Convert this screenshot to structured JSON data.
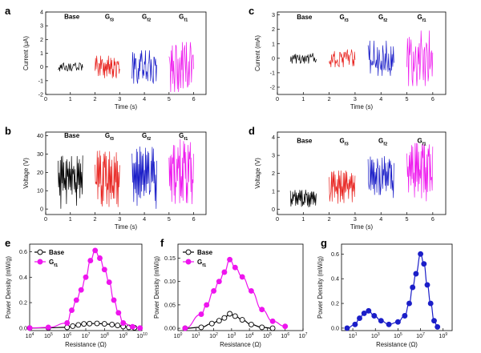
{
  "chart_data": [
    {
      "panel": "a",
      "type": "line",
      "xlabel": "Time (s)",
      "ylabel": "Current (μA)",
      "xlim": [
        0,
        6.5
      ],
      "ylim": [
        -2,
        4
      ],
      "xticks": [
        "0",
        "1",
        "2",
        "3",
        "4",
        "5",
        "6"
      ],
      "yticks": [
        "-2",
        "-1",
        "0",
        "1",
        "2",
        "3",
        "4"
      ],
      "series": [
        {
          "name": "Base",
          "t_range": [
            0.5,
            1.5
          ],
          "amplitude": 0.3,
          "color": "#000000",
          "seed": 11
        },
        {
          "name": "Gf3",
          "t_range": [
            2.0,
            3.0
          ],
          "amplitude": 0.8,
          "color": "#e8231f",
          "seed": 23
        },
        {
          "name": "Gf2",
          "t_range": [
            3.5,
            4.5
          ],
          "amplitude": 1.2,
          "color": "#1b1ec8",
          "seed": 37
        },
        {
          "name": "Gf1",
          "t_range": [
            5.0,
            6.0
          ],
          "amplitude": 1.8,
          "color": "#ee15ee",
          "seed": 51
        }
      ],
      "annotations": [
        {
          "text": "Base",
          "t": 0.75,
          "y": 3.5
        },
        {
          "base": "G",
          "sub": "f3",
          "t": 2.4,
          "y": 3.5
        },
        {
          "base": "G",
          "sub": "f2",
          "t": 3.9,
          "y": 3.5
        },
        {
          "base": "G",
          "sub": "f1",
          "t": 5.4,
          "y": 3.5
        }
      ]
    },
    {
      "panel": "b",
      "type": "line",
      "xlabel": "Time (s)",
      "ylabel": "Voltage (V)",
      "xlim": [
        0,
        6.5
      ],
      "ylim": [
        -3,
        42
      ],
      "xticks": [
        "0",
        "1",
        "2",
        "3",
        "4",
        "5",
        "6"
      ],
      "yticks": [
        "0",
        "10",
        "20",
        "30",
        "40"
      ],
      "series": [
        {
          "name": "Base",
          "t_range": [
            0.5,
            1.5
          ],
          "low": 0,
          "high": 30,
          "color": "#000000",
          "seed": 5
        },
        {
          "name": "Gf3",
          "t_range": [
            2.0,
            3.0
          ],
          "low": 0,
          "high": 33,
          "color": "#e8231f",
          "seed": 17
        },
        {
          "name": "Gf2",
          "t_range": [
            3.5,
            4.5
          ],
          "low": 0,
          "high": 34,
          "color": "#1b1ec8",
          "seed": 29
        },
        {
          "name": "Gf1",
          "t_range": [
            5.0,
            6.0
          ],
          "low": 2,
          "high": 38,
          "color": "#ee15ee",
          "seed": 43
        }
      ],
      "annotations": [
        {
          "text": "Base",
          "t": 0.75,
          "y": 39
        },
        {
          "base": "G",
          "sub": "f3",
          "t": 2.4,
          "y": 39
        },
        {
          "base": "G",
          "sub": "f2",
          "t": 3.9,
          "y": 39
        },
        {
          "base": "G",
          "sub": "f1",
          "t": 5.4,
          "y": 39
        }
      ]
    },
    {
      "panel": "c",
      "type": "line",
      "xlabel": "Time (s)",
      "ylabel": "Current (mA)",
      "xlim": [
        0,
        6.5
      ],
      "ylim": [
        -2.5,
        3.2
      ],
      "xticks": [
        "0",
        "1",
        "2",
        "3",
        "4",
        "5",
        "6"
      ],
      "yticks": [
        "-2",
        "-1",
        "0",
        "1",
        "2",
        "3"
      ],
      "series": [
        {
          "name": "Base",
          "t_range": [
            0.5,
            1.5
          ],
          "amplitude": 0.35,
          "color": "#000000",
          "seed": 61
        },
        {
          "name": "Gf3",
          "t_range": [
            2.0,
            3.0
          ],
          "amplitude": 0.6,
          "color": "#e8231f",
          "seed": 73
        },
        {
          "name": "Gf2",
          "t_range": [
            3.5,
            4.5
          ],
          "amplitude": 1.2,
          "color": "#1b1ec8",
          "seed": 89
        },
        {
          "name": "Gf1",
          "t_range": [
            5.0,
            6.0
          ],
          "amplitude": 1.9,
          "color": "#ee15ee",
          "seed": 97
        }
      ],
      "annotations": [
        {
          "text": "Base",
          "t": 0.75,
          "y": 2.7
        },
        {
          "base": "G",
          "sub": "f3",
          "t": 2.4,
          "y": 2.7
        },
        {
          "base": "G",
          "sub": "f2",
          "t": 3.9,
          "y": 2.7
        },
        {
          "base": "G",
          "sub": "f1",
          "t": 5.4,
          "y": 2.7
        }
      ]
    },
    {
      "panel": "d",
      "type": "line",
      "xlabel": "Time (s)",
      "ylabel": "Voltage (V)",
      "xlim": [
        0,
        6.5
      ],
      "ylim": [
        -0.3,
        4.3
      ],
      "xticks": [
        "0",
        "1",
        "2",
        "3",
        "4",
        "5",
        "6"
      ],
      "yticks": [
        "0",
        "1",
        "2",
        "3",
        "4"
      ],
      "series": [
        {
          "name": "Base",
          "t_range": [
            0.5,
            1.5
          ],
          "low": 0.1,
          "high": 1.1,
          "color": "#000000",
          "seed": 101
        },
        {
          "name": "Gf3",
          "t_range": [
            2.0,
            3.0
          ],
          "low": 0.3,
          "high": 2.2,
          "color": "#e8231f",
          "seed": 113
        },
        {
          "name": "Gf2",
          "t_range": [
            3.5,
            4.5
          ],
          "low": 0.4,
          "high": 3.0,
          "color": "#1b1ec8",
          "seed": 127
        },
        {
          "name": "Gf1",
          "t_range": [
            5.0,
            6.0
          ],
          "low": 0.4,
          "high": 3.9,
          "color": "#ee15ee",
          "seed": 139
        }
      ],
      "annotations": [
        {
          "text": "Base",
          "t": 0.75,
          "y": 3.7
        },
        {
          "base": "G",
          "sub": "f3",
          "t": 2.4,
          "y": 3.7
        },
        {
          "base": "G",
          "sub": "f2",
          "t": 3.9,
          "y": 3.7
        },
        {
          "base": "G",
          "sub": "f1",
          "t": 5.4,
          "y": 3.7
        }
      ]
    },
    {
      "panel": "e",
      "type": "scatter-fit",
      "xscale": "log",
      "xlabel": "Resistance (Ω)",
      "ylabel": "Power Density (mW/g)",
      "xlim_log10": [
        4,
        10
      ],
      "ylim": [
        -0.02,
        0.66
      ],
      "xtick_exponents": [
        4,
        5,
        6,
        7,
        8,
        9,
        10
      ],
      "yticks": [
        0,
        0.2,
        0.4,
        0.6
      ],
      "ytick_labels": [
        "0.0",
        "0.2",
        "0.4",
        "0.6"
      ],
      "legend": [
        {
          "text": "Base"
        },
        {
          "base": "G",
          "sub": "f1"
        }
      ],
      "series": [
        {
          "name": "Base",
          "color": "#000000",
          "fill": "#ffffff",
          "points": [
            [
              4.0,
              0.0
            ],
            [
              5.0,
              0.002
            ],
            [
              6.0,
              0.006
            ],
            [
              6.3,
              0.015
            ],
            [
              6.6,
              0.025
            ],
            [
              6.9,
              0.032
            ],
            [
              7.2,
              0.035
            ],
            [
              7.6,
              0.036
            ],
            [
              8.0,
              0.033
            ],
            [
              8.4,
              0.028
            ],
            [
              8.7,
              0.02
            ],
            [
              9.0,
              0.012
            ],
            [
              9.3,
              0.006
            ],
            [
              9.6,
              0.002
            ]
          ]
        },
        {
          "name": "Gf1",
          "color": "#ee15ee",
          "fill": "#ee15ee",
          "points": [
            [
              4.0,
              0.0
            ],
            [
              5.0,
              0.005
            ],
            [
              6.0,
              0.04
            ],
            [
              6.25,
              0.14
            ],
            [
              6.5,
              0.22
            ],
            [
              6.75,
              0.3
            ],
            [
              7.0,
              0.4
            ],
            [
              7.25,
              0.53
            ],
            [
              7.5,
              0.61
            ],
            [
              7.75,
              0.55
            ],
            [
              8.0,
              0.46
            ],
            [
              8.25,
              0.36
            ],
            [
              8.5,
              0.22
            ],
            [
              8.75,
              0.12
            ],
            [
              9.0,
              0.04
            ],
            [
              9.5,
              0.01
            ],
            [
              9.9,
              0.0
            ]
          ]
        }
      ]
    },
    {
      "panel": "f",
      "type": "scatter-fit",
      "xscale": "log",
      "xlabel": "Resistance (Ω)",
      "ylabel": "Power Density (mW/g)",
      "xlim_log10": [
        0,
        7
      ],
      "ylim": [
        -0.005,
        0.18
      ],
      "xtick_exponents": [
        0,
        1,
        2,
        3,
        4,
        5,
        6,
        7
      ],
      "yticks": [
        0,
        0.05,
        0.1,
        0.15
      ],
      "ytick_labels": [
        "0.00",
        "0.05",
        "0.10",
        "0.15"
      ],
      "legend": [
        {
          "text": "Base"
        },
        {
          "base": "G",
          "sub": "f1"
        }
      ],
      "series": [
        {
          "name": "Base",
          "color": "#000000",
          "fill": "#ffffff",
          "points": [
            [
              0.4,
              0.0
            ],
            [
              1.3,
              0.002
            ],
            [
              1.9,
              0.01
            ],
            [
              2.3,
              0.016
            ],
            [
              2.6,
              0.022
            ],
            [
              2.9,
              0.031
            ],
            [
              3.2,
              0.026
            ],
            [
              3.6,
              0.018
            ],
            [
              4.1,
              0.008
            ],
            [
              4.7,
              0.002
            ],
            [
              5.3,
              0.0
            ]
          ]
        },
        {
          "name": "Gf1",
          "color": "#ee15ee",
          "fill": "#ee15ee",
          "points": [
            [
              0.4,
              0.0
            ],
            [
              1.3,
              0.03
            ],
            [
              1.6,
              0.05
            ],
            [
              2.0,
              0.08
            ],
            [
              2.3,
              0.1
            ],
            [
              2.6,
              0.12
            ],
            [
              2.9,
              0.147
            ],
            [
              3.2,
              0.13
            ],
            [
              3.6,
              0.11
            ],
            [
              4.1,
              0.08
            ],
            [
              4.7,
              0.04
            ],
            [
              5.3,
              0.015
            ],
            [
              6.0,
              0.004
            ]
          ]
        }
      ]
    },
    {
      "panel": "g",
      "type": "scatter-fit",
      "xscale": "log",
      "xlabel": "Resistance (Ω)",
      "ylabel": "Power Density (mW/g)",
      "xlim_log10": [
        0,
        9.8
      ],
      "ylim": [
        -0.02,
        0.68
      ],
      "xtick_exponents": [
        1,
        3,
        5,
        7,
        9
      ],
      "yticks": [
        0,
        0.2,
        0.4,
        0.6
      ],
      "ytick_labels": [
        "0.0",
        "0.2",
        "0.4",
        "0.6"
      ],
      "series": [
        {
          "name": "Gf1",
          "color": "#1b1ec8",
          "fill": "#1b1ec8",
          "points": [
            [
              0.5,
              0.0
            ],
            [
              1.2,
              0.03
            ],
            [
              1.6,
              0.08
            ],
            [
              2.0,
              0.12
            ],
            [
              2.4,
              0.14
            ],
            [
              2.9,
              0.1
            ],
            [
              3.5,
              0.06
            ],
            [
              4.2,
              0.03
            ],
            [
              5.0,
              0.05
            ],
            [
              5.6,
              0.1
            ],
            [
              6.0,
              0.2
            ],
            [
              6.3,
              0.33
            ],
            [
              6.6,
              0.44
            ],
            [
              7.0,
              0.6
            ],
            [
              7.3,
              0.52
            ],
            [
              7.6,
              0.35
            ],
            [
              7.9,
              0.2
            ],
            [
              8.2,
              0.06
            ],
            [
              8.5,
              0.01
            ]
          ]
        }
      ]
    }
  ]
}
